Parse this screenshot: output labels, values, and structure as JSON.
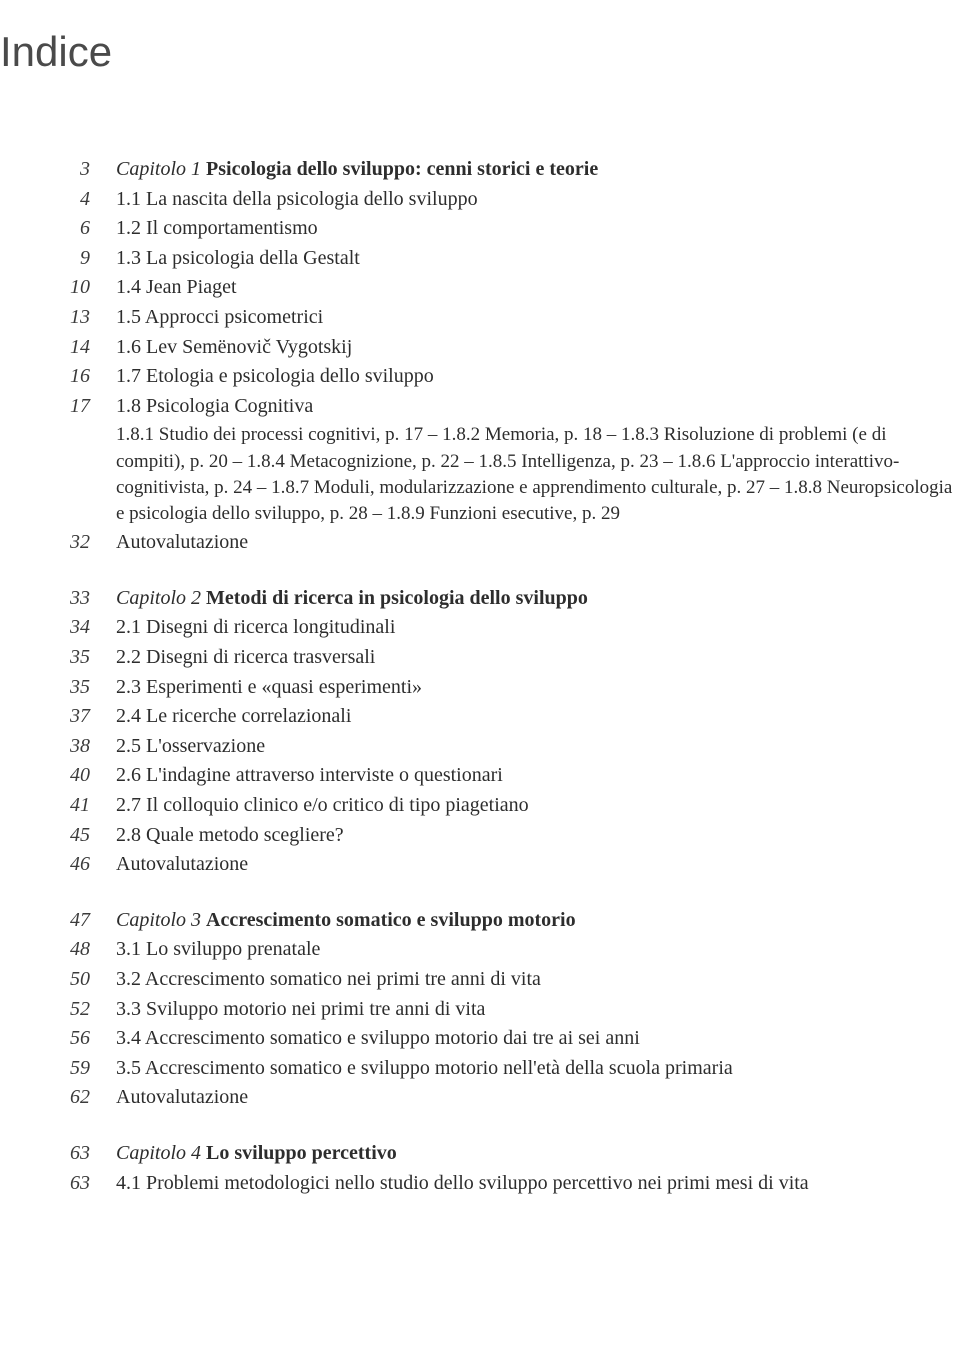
{
  "title": "Indice",
  "chapters": [
    {
      "page": "3",
      "label": "Capitolo 1",
      "title": "Psicologia dello sviluppo: cenni storici e teorie",
      "sections": [
        {
          "page": "4",
          "num": "1.1",
          "title": "La nascita della psicologia dello sviluppo"
        },
        {
          "page": "6",
          "num": "1.2",
          "title": "Il comportamentismo"
        },
        {
          "page": "9",
          "num": "1.3",
          "title": "La psicologia della Gestalt"
        },
        {
          "page": "10",
          "num": "1.4",
          "title": "Jean Piaget"
        },
        {
          "page": "13",
          "num": "1.5",
          "title": "Approcci psicometrici"
        },
        {
          "page": "14",
          "num": "1.6",
          "title": "Lev Semënovič Vygotskij"
        },
        {
          "page": "16",
          "num": "1.7",
          "title": "Etologia e psicologia dello sviluppo"
        },
        {
          "page": "17",
          "num": "1.8",
          "title": "Psicologia Cognitiva",
          "desc": "1.8.1 Studio dei processi cognitivi, p. 17 – 1.8.2 Memoria, p. 18 – 1.8.3 Risoluzione di problemi (e di compiti), p. 20 – 1.8.4 Metacognizione, p. 22 – 1.8.5 Intelligenza, p. 23 – 1.8.6 L'approccio interattivo-cognitivista, p. 24 – 1.8.7 Moduli, modularizzazione e apprendimento culturale, p. 27 – 1.8.8 Neuropsicologia e psicologia dello sviluppo, p. 28 – 1.8.9 Funzioni esecutive, p. 29"
        },
        {
          "page": "32",
          "num": "",
          "title": "Autovalutazione"
        }
      ]
    },
    {
      "page": "33",
      "label": "Capitolo 2",
      "title": "Metodi di ricerca in psicologia dello sviluppo",
      "sections": [
        {
          "page": "34",
          "num": "2.1",
          "title": "Disegni di ricerca longitudinali"
        },
        {
          "page": "35",
          "num": "2.2",
          "title": "Disegni di ricerca trasversali"
        },
        {
          "page": "35",
          "num": "2.3",
          "title": "Esperimenti e «quasi esperimenti»"
        },
        {
          "page": "37",
          "num": "2.4",
          "title": "Le ricerche correlazionali"
        },
        {
          "page": "38",
          "num": "2.5",
          "title": "L'osservazione"
        },
        {
          "page": "40",
          "num": "2.6",
          "title": "L'indagine attraverso interviste o questionari"
        },
        {
          "page": "41",
          "num": "2.7",
          "title": "Il colloquio clinico e/o critico di tipo piagetiano"
        },
        {
          "page": "45",
          "num": "2.8",
          "title": "Quale metodo scegliere?"
        },
        {
          "page": "46",
          "num": "",
          "title": "Autovalutazione"
        }
      ]
    },
    {
      "page": "47",
      "label": "Capitolo 3",
      "title": "Accrescimento somatico e sviluppo motorio",
      "sections": [
        {
          "page": "48",
          "num": "3.1",
          "title": "Lo sviluppo prenatale"
        },
        {
          "page": "50",
          "num": "3.2",
          "title": "Accrescimento somatico nei primi tre anni di vita"
        },
        {
          "page": "52",
          "num": "3.3",
          "title": "Sviluppo motorio nei primi tre anni di vita"
        },
        {
          "page": "56",
          "num": "3.4",
          "title": "Accrescimento somatico e sviluppo motorio dai tre ai sei anni"
        },
        {
          "page": "59",
          "num": "3.5",
          "title": "Accrescimento somatico e sviluppo motorio nell'età della scuola primaria"
        },
        {
          "page": "62",
          "num": "",
          "title": "Autovalutazione"
        }
      ]
    },
    {
      "page": "63",
      "label": "Capitolo 4",
      "title": "Lo sviluppo percettivo",
      "sections": [
        {
          "page": "63",
          "num": "4.1",
          "title": "Problemi metodologici nello studio dello sviluppo percettivo nei primi mesi di vita"
        }
      ]
    }
  ]
}
